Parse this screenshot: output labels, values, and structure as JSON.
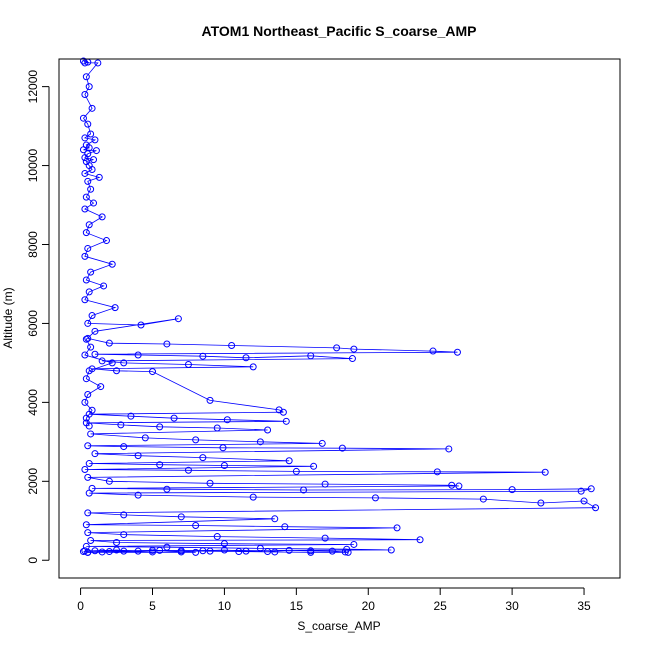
{
  "chart_data": {
    "type": "scatter",
    "mode": "points-connected-by-lines",
    "title": "ATOM1 Northeast_Pacific S_coarse_AMP",
    "xlabel": "S_coarse_AMP",
    "ylabel": "Altitude (m)",
    "xlim": [
      -1.5,
      37.5
    ],
    "ylim": [
      -450,
      12700
    ],
    "xticks": [
      0,
      5,
      10,
      15,
      20,
      25,
      30,
      35
    ],
    "yticks": [
      0,
      2000,
      4000,
      6000,
      8000,
      10000,
      12000
    ],
    "grid": false,
    "legend": "none",
    "color": "#0000ff",
    "series": [
      {
        "x": [
          0.2,
          0.5,
          0.3,
          1.2,
          0.4,
          0.6,
          0.3,
          0.8,
          0.2,
          0.5,
          0.7,
          0.3,
          1.0,
          0.4,
          0.6,
          0.2,
          1.1,
          0.5,
          0.3,
          0.9,
          0.4,
          0.6,
          0.8,
          0.3,
          1.3,
          0.5,
          0.7,
          0.4,
          0.9,
          0.3,
          1.5,
          0.6,
          0.4,
          1.8,
          0.5,
          0.3,
          2.2,
          0.7,
          0.4,
          1.6,
          0.6,
          0.3,
          2.4,
          0.8,
          0.5,
          4.2,
          6.8,
          1.0,
          0.4,
          0.7,
          0.3,
          2.2,
          0.6,
          0.4,
          1.4,
          0.5,
          0.3,
          0.8,
          0.4,
          0.6
        ],
        "y": [
          12650,
          12620,
          12600,
          12600,
          12250,
          12000,
          11800,
          11450,
          11200,
          11050,
          10800,
          10700,
          10650,
          10520,
          10450,
          10400,
          10380,
          10300,
          10200,
          10150,
          10100,
          10000,
          9900,
          9800,
          9700,
          9600,
          9400,
          9200,
          9050,
          8900,
          8700,
          8500,
          8300,
          8100,
          7900,
          7700,
          7500,
          7300,
          7100,
          6950,
          6800,
          6600,
          6400,
          6200,
          6000,
          5960,
          6120,
          5800,
          5600,
          5400,
          5200,
          5000,
          4800,
          4600,
          4400,
          4200,
          4000,
          3800,
          3600,
          3400
        ]
      },
      {
        "x": [
          0.5,
          2.0,
          6.0,
          10.5,
          17.8,
          19.0,
          24.5,
          26.2,
          1.0,
          4.0,
          8.5,
          11.5,
          16.0,
          18.9,
          1.5,
          3.0,
          7.5,
          12.0,
          0.8,
          2.5,
          5.0,
          9.0,
          13.8,
          14.1,
          0.6,
          3.5,
          6.5,
          10.2,
          14.3,
          0.4,
          2.8,
          5.5,
          9.5,
          13.0,
          0.7,
          4.5,
          8.0,
          12.5,
          16.8,
          0.5,
          3.0,
          9.9,
          18.2,
          25.6,
          1.0,
          4.0,
          8.5,
          14.5,
          0.6,
          5.5,
          10.0,
          16.2,
          0.3,
          7.5,
          15.0,
          24.8,
          32.3,
          0.5,
          2.0,
          9.0,
          17.0,
          25.8,
          26.3,
          0.8,
          6.0,
          15.5,
          30.0,
          35.5,
          34.8,
          0.6,
          4.0,
          12.0,
          20.5,
          28.0,
          32.0,
          35.0,
          35.8,
          0.5,
          3.0,
          7.0,
          13.5,
          0.4,
          8.0,
          14.2,
          22.0,
          0.5,
          3.0,
          9.5,
          17.0,
          23.6,
          0.7,
          2.5,
          10.0,
          19.0,
          0.4,
          6.0,
          12.5,
          18.5,
          21.6,
          0.3,
          2.0,
          5.0,
          8.0,
          0.5
        ],
        "y": [
          5620,
          5500,
          5480,
          5440,
          5380,
          5350,
          5300,
          5270,
          5220,
          5200,
          5170,
          5130,
          5180,
          5110,
          5050,
          5000,
          4960,
          4900,
          4850,
          4800,
          4780,
          4050,
          3810,
          3750,
          3700,
          3650,
          3600,
          3560,
          3520,
          3480,
          3430,
          3380,
          3350,
          3300,
          3200,
          3100,
          3050,
          3000,
          2960,
          2900,
          2880,
          2850,
          2840,
          2820,
          2700,
          2650,
          2600,
          2520,
          2450,
          2420,
          2400,
          2380,
          2300,
          2280,
          2250,
          2240,
          2230,
          2100,
          2000,
          1950,
          1930,
          1900,
          1880,
          1820,
          1800,
          1780,
          1790,
          1810,
          1750,
          1700,
          1650,
          1600,
          1580,
          1550,
          1450,
          1500,
          1330,
          1200,
          1150,
          1100,
          1050,
          900,
          880,
          850,
          820,
          700,
          650,
          600,
          560,
          520,
          500,
          450,
          420,
          400,
          350,
          330,
          300,
          280,
          260,
          240,
          220,
          210,
          200,
          200
        ]
      },
      {
        "x": [
          0.2,
          1.0,
          2.5,
          4.0,
          5.5,
          7.0,
          8.5,
          10.0,
          11.5,
          13.0,
          14.5,
          16.0,
          17.5,
          18.4,
          18.6,
          16.0,
          13.5,
          11.0,
          9.0,
          7.0,
          5.0,
          3.0,
          1.5,
          0.5
        ],
        "y": [
          220,
          240,
          260,
          230,
          250,
          210,
          240,
          260,
          230,
          220,
          250,
          240,
          230,
          210,
          200,
          200,
          210,
          220,
          230,
          240,
          250,
          230,
          210,
          200
        ]
      }
    ]
  }
}
